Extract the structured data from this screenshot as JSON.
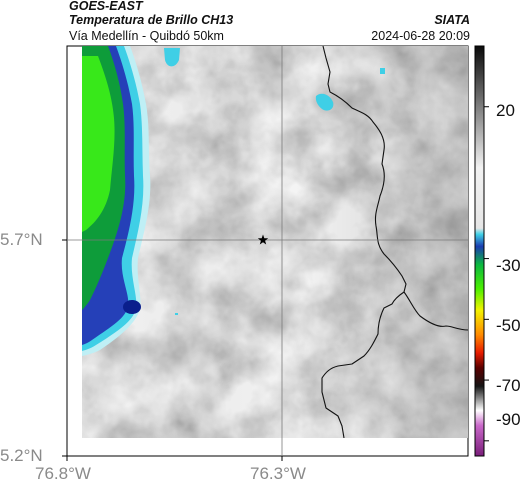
{
  "header": {
    "satellite": "GOES-EAST",
    "product": "Temperatura de Brillo CH13",
    "agency": "SIATA",
    "route": "Vía Medellín - Quibdó 50km",
    "datetime": "2024-06-28 20:09"
  },
  "map": {
    "lat_ticks": [
      "5.7°N",
      "5.2°N"
    ],
    "lon_ticks": [
      "76.8°W",
      "76.3°W"
    ],
    "marker": "star",
    "gridlines": true
  },
  "colorbar": {
    "labels": [
      "20",
      "-30",
      "-50",
      "-70",
      "-90"
    ],
    "min": -95,
    "max": 40,
    "unit_note": "brightness temperature °C (unlabeled)",
    "stops": [
      {
        "value": 40,
        "color": "#0a0a0a"
      },
      {
        "value": 0,
        "color": "#f2f2f2"
      },
      {
        "value": -20,
        "color": "#e6e6e6"
      },
      {
        "value": -22,
        "color": "#3fd1e6"
      },
      {
        "value": -26,
        "color": "#1b3cb0"
      },
      {
        "value": -32,
        "color": "#0bb840"
      },
      {
        "value": -40,
        "color": "#4cf000"
      },
      {
        "value": -47,
        "color": "#f2f200"
      },
      {
        "value": -55,
        "color": "#ff8c00"
      },
      {
        "value": -61,
        "color": "#e81c00"
      },
      {
        "value": -66,
        "color": "#5a0000"
      },
      {
        "value": -72,
        "color": "#151515"
      },
      {
        "value": -80,
        "color": "#ffffff"
      },
      {
        "value": -85,
        "color": "#c968c9"
      },
      {
        "value": -95,
        "color": "#7a1e7a"
      }
    ]
  }
}
